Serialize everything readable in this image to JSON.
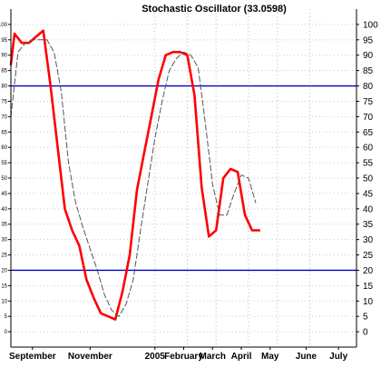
{
  "chart_data": {
    "type": "line",
    "title": "Stochastic Oscillator (33.0598)",
    "ylim": [
      -5,
      105
    ],
    "yticks": [
      0,
      5,
      10,
      15,
      20,
      25,
      30,
      35,
      40,
      45,
      50,
      55,
      60,
      65,
      70,
      75,
      80,
      85,
      90,
      95,
      100
    ],
    "y_axis_sides": [
      "left",
      "right"
    ],
    "xlim": [
      0,
      48
    ],
    "x_tick_labels": [
      {
        "label": "September",
        "x": 3
      },
      {
        "label": "November",
        "x": 11
      },
      {
        "label": "2005",
        "x": 20
      },
      {
        "label": "February",
        "x": 24
      },
      {
        "label": "March",
        "x": 28
      },
      {
        "label": "April",
        "x": 32
      },
      {
        "label": "May",
        "x": 36
      },
      {
        "label": "June",
        "x": 41
      },
      {
        "label": "July",
        "x": 45.5
      }
    ],
    "x_separators": [
      20,
      24.5,
      28.5,
      33,
      37,
      41.5
    ],
    "reference_lines": [
      {
        "y": 80,
        "color": "#0000cc"
      },
      {
        "y": 20,
        "color": "#0000cc"
      }
    ],
    "grid": true,
    "series": [
      {
        "color": "#ff0000",
        "style": "solid",
        "x": [
          0,
          0.5,
          1.5,
          2.5,
          3.5,
          4.5,
          5.5,
          6.5,
          7.5,
          8.5,
          9.5,
          10.5,
          11.5,
          12.5,
          13.5,
          14.5,
          15.5,
          16.5,
          17.5,
          18.5,
          19.5,
          20.5,
          21.5,
          22.5,
          23.5,
          24.5,
          25.5,
          26.5,
          27.5,
          28.5,
          29.5,
          30.5,
          31.5,
          32.5,
          33.5,
          34.5
        ],
        "values": [
          87,
          97,
          94,
          94,
          96,
          98,
          80,
          60,
          40,
          33,
          28,
          17,
          11,
          6,
          5,
          4,
          13,
          25,
          46,
          58,
          70,
          82,
          90,
          91,
          91,
          90,
          77,
          47,
          31,
          33,
          50,
          53,
          52,
          38,
          33,
          33
        ]
      },
      {
        "color": "#555555",
        "style": "dashed",
        "x": [
          0,
          1,
          2,
          3,
          4,
          5,
          6,
          7,
          8,
          9,
          10,
          11,
          12,
          13,
          14,
          15,
          16,
          17,
          18,
          19,
          20,
          21,
          22,
          23,
          24,
          25,
          26,
          27,
          28,
          29,
          30,
          31,
          32,
          33,
          34
        ],
        "values": [
          70,
          91,
          94,
          95,
          95,
          95,
          91,
          78,
          55,
          42,
          34,
          27,
          20,
          12,
          7,
          5,
          9,
          17,
          33,
          48,
          63,
          75,
          85,
          89,
          91,
          90,
          86,
          68,
          48,
          38,
          38,
          45,
          51,
          50,
          42
        ]
      }
    ]
  }
}
